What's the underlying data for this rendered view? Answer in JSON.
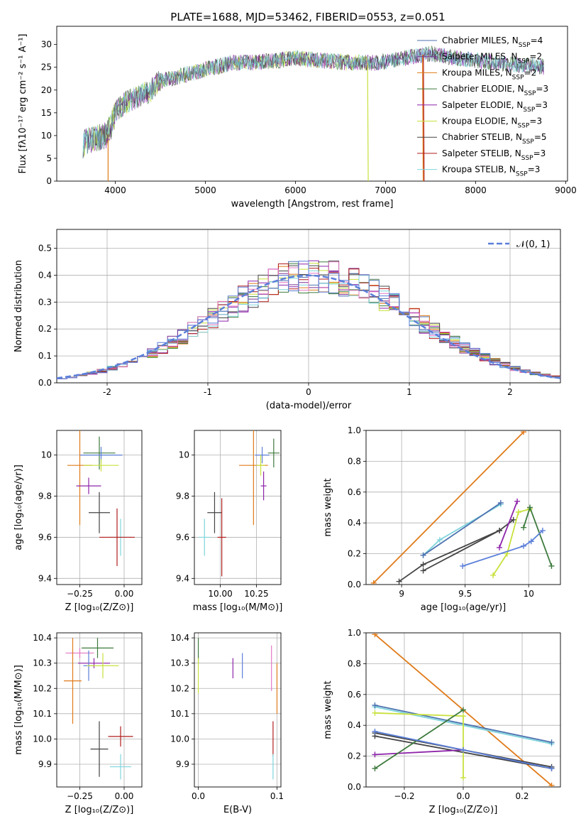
{
  "figure_title": "PLATE=1688, MJD=53462, FIBERID=0553, z=0.051",
  "colors": {
    "chabrier_miles": "#4c72b0",
    "salpeter_miles": "#7b3294",
    "kroupa_miles": "#e07b1a",
    "chabrier_elodie": "#3d7a3d",
    "salpeter_elodie": "#8e24aa",
    "kroupa_elodie": "#c8e03c",
    "chabrier_stelib": "#444444",
    "salpeter_stelib": "#b01c1c",
    "kroupa_stelib": "#7fd4dc",
    "blue": "#5b7fd9",
    "pink": "#e377c2",
    "normal_curve": "#5b7fd9"
  },
  "chart_data": [
    {
      "id": "spectrum",
      "type": "line",
      "xlabel": "wavelength [Angstrom, rest frame]",
      "ylabel": "Flux [fλ10⁻¹⁷ erg cm⁻² s⁻¹ A⁻¹]",
      "xlim": [
        3350,
        9020
      ],
      "ylim": [
        0,
        34
      ],
      "xticks": [
        4000,
        5000,
        6000,
        7000,
        8000,
        9000
      ],
      "yticks": [
        0,
        5,
        10,
        15,
        20,
        25,
        30
      ],
      "grid": false,
      "legend_position": "top-right",
      "legend": [
        {
          "label": "Chabrier MILES, N_SSP=4",
          "color_key": "chabrier_miles"
        },
        {
          "label": "Salpeter MILES, N_SSP=2",
          "color_key": "salpeter_miles"
        },
        {
          "label": "Kroupa MILES, N_SSP=2",
          "color_key": "kroupa_miles"
        },
        {
          "label": "Chabrier ELODIE, N_SSP=3",
          "color_key": "chabrier_elodie"
        },
        {
          "label": "Salpeter ELODIE, N_SSP=3",
          "color_key": "salpeter_elodie"
        },
        {
          "label": "Kroupa ELODIE, N_SSP=3",
          "color_key": "kroupa_elodie"
        },
        {
          "label": "Chabrier STELIB, N_SSP=5",
          "color_key": "chabrier_stelib"
        },
        {
          "label": "Salpeter STELIB, N_SSP=3",
          "color_key": "salpeter_stelib"
        },
        {
          "label": "Kroupa STELIB, N_SSP=3",
          "color_key": "kroupa_stelib"
        }
      ],
      "continuum": [
        [
          3640,
          8
        ],
        [
          3700,
          9
        ],
        [
          3800,
          9.5
        ],
        [
          3900,
          10
        ],
        [
          3950,
          12
        ],
        [
          4000,
          15
        ],
        [
          4100,
          17
        ],
        [
          4200,
          18
        ],
        [
          4300,
          19
        ],
        [
          4400,
          20
        ],
        [
          4500,
          22
        ],
        [
          4700,
          23
        ],
        [
          4900,
          24
        ],
        [
          5100,
          25
        ],
        [
          5300,
          26
        ],
        [
          5500,
          26
        ],
        [
          5800,
          26.5
        ],
        [
          6000,
          27
        ],
        [
          6300,
          26.5
        ],
        [
          6600,
          26
        ],
        [
          6900,
          26
        ],
        [
          7200,
          27
        ],
        [
          7500,
          28
        ],
        [
          7800,
          27
        ],
        [
          8200,
          26
        ],
        [
          8500,
          25.5
        ],
        [
          8760,
          25
        ]
      ],
      "series_ends": [
        {
          "color_key": "kroupa_elodie",
          "x_end": 6800
        },
        {
          "color_key": "salpeter_stelib",
          "x_end": 7420
        },
        {
          "color_key": "kroupa_miles",
          "x_end": 7420
        },
        {
          "color_key": "chabrier_miles",
          "x_end": 8760
        },
        {
          "color_key": "chabrier_stelib",
          "x_end": 8760
        },
        {
          "color_key": "kroupa_stelib",
          "x_end": 8760
        }
      ]
    },
    {
      "id": "residuals",
      "type": "histogram",
      "xlabel": "(data-model)/error",
      "ylabel": "Normed distribution",
      "xlim": [
        -2.5,
        2.5
      ],
      "ylim": [
        0,
        0.57
      ],
      "xticks": [
        -2,
        -1,
        0,
        1,
        2
      ],
      "yticks": [
        0.0,
        0.1,
        0.2,
        0.3,
        0.4,
        0.5
      ],
      "grid": true,
      "legend_position": "top-right",
      "legend_label": "𝒩(0, 1)",
      "bin_width": 0.1,
      "reference_curve": "normal(0,1)"
    },
    {
      "id": "age_vs_Z",
      "type": "errorbar",
      "xlabel": "Z [log₁₀(Z/Z⊙)]",
      "ylabel": "age  [log₁₀(age/yr)]",
      "xlim": [
        -0.38,
        0.1
      ],
      "ylim": [
        9.37,
        10.12
      ],
      "xticks": [
        -0.25,
        0.0
      ],
      "xticklabels": [
        "−0.25",
        "0.00"
      ],
      "yticks": [
        9.4,
        9.6,
        9.8,
        10.0
      ],
      "grid": true,
      "points": [
        {
          "c": "chabrier_elodie",
          "x": -0.14,
          "y": 10.01,
          "xe": 0.09,
          "ye": 0.08
        },
        {
          "c": "blue",
          "x": -0.13,
          "y": 10.0,
          "xe": 0.12,
          "ye": 0.04
        },
        {
          "c": "kroupa_miles",
          "x": -0.25,
          "y": 9.95,
          "xe": 0.07,
          "ye": 0.29
        },
        {
          "c": "kroupa_elodie",
          "x": -0.13,
          "y": 9.95,
          "xe": 0.1,
          "ye": 0.03
        },
        {
          "c": "salpeter_elodie",
          "x": -0.2,
          "y": 9.85,
          "xe": 0.07,
          "ye": 0.04
        },
        {
          "c": "chabrier_stelib",
          "x": -0.14,
          "y": 9.72,
          "xe": 0.06,
          "ye": 0.1
        },
        {
          "c": "kroupa_stelib",
          "x": -0.02,
          "y": 9.6,
          "xe": 0.06,
          "ye": 0.09
        },
        {
          "c": "salpeter_stelib",
          "x": -0.04,
          "y": 9.6,
          "xe": 0.1,
          "ye": 0.14
        }
      ]
    },
    {
      "id": "age_vs_mass",
      "type": "errorbar",
      "xlabel": "mass [log₁₀(M/M⊙)]",
      "ylabel": "",
      "xlim": [
        9.82,
        10.42
      ],
      "ylim": [
        9.37,
        10.12
      ],
      "xticks": [
        10.0,
        10.25
      ],
      "xticklabels": [
        "10.00",
        "10.25"
      ],
      "yticks": [
        9.4,
        9.6,
        9.8,
        10.0
      ],
      "grid": true,
      "points": [
        {
          "c": "chabrier_elodie",
          "x": 10.37,
          "y": 10.01,
          "xe": 0.04,
          "ye": 0.07
        },
        {
          "c": "blue",
          "x": 10.29,
          "y": 10.0,
          "xe": 0.05,
          "ye": 0.04
        },
        {
          "c": "kroupa_miles",
          "x": 10.23,
          "y": 9.95,
          "xe": 0.1,
          "ye": 0.29
        },
        {
          "c": "kroupa_elodie",
          "x": 10.28,
          "y": 9.95,
          "xe": 0.03,
          "ye": 0.05
        },
        {
          "c": "salpeter_elodie",
          "x": 10.3,
          "y": 9.85,
          "xe": 0.02,
          "ye": 0.07
        },
        {
          "c": "chabrier_stelib",
          "x": 9.96,
          "y": 9.72,
          "xe": 0.05,
          "ye": 0.1
        },
        {
          "c": "kroupa_stelib",
          "x": 9.89,
          "y": 9.6,
          "xe": 0.04,
          "ye": 0.09
        },
        {
          "c": "salpeter_stelib",
          "x": 10.01,
          "y": 9.6,
          "xe": 0.03,
          "ye": 0.19
        }
      ]
    },
    {
      "id": "massweight_vs_age",
      "type": "line",
      "xlabel": "age  [log₁₀(age/yr)]",
      "ylabel": "mass weight",
      "xlim": [
        8.72,
        10.25
      ],
      "ylim": [
        0,
        1
      ],
      "xticks": [
        9.0,
        9.5,
        10.0
      ],
      "yticks": [
        0.0,
        0.2,
        0.4,
        0.6,
        0.8,
        1.0
      ],
      "grid": true,
      "series": [
        {
          "c": "kroupa_miles",
          "points": [
            [
              8.78,
              0.01
            ],
            [
              9.96,
              0.99
            ]
          ]
        },
        {
          "c": "kroupa_stelib",
          "points": [
            [
              9.17,
              0.19
            ],
            [
              9.3,
              0.29
            ],
            [
              9.78,
              0.52
            ]
          ]
        },
        {
          "c": "chabrier_miles",
          "points": [
            [
              9.17,
              0.19
            ],
            [
              9.78,
              0.53
            ]
          ]
        },
        {
          "c": "chabrier_stelib",
          "points": [
            [
              8.98,
              0.02
            ],
            [
              9.17,
              0.13
            ],
            [
              9.77,
              0.35
            ],
            [
              9.88,
              0.42
            ]
          ]
        },
        {
          "c": "chabrier_stelib",
          "points": [
            [
              9.17,
              0.09
            ],
            [
              9.77,
              0.35
            ]
          ]
        },
        {
          "c": "salpeter_elodie",
          "points": [
            [
              9.77,
              0.24
            ],
            [
              9.91,
              0.54
            ]
          ]
        },
        {
          "c": "kroupa_elodie",
          "points": [
            [
              9.72,
              0.06
            ],
            [
              9.83,
              0.2
            ],
            [
              9.92,
              0.47
            ],
            [
              10.01,
              0.49
            ]
          ]
        },
        {
          "c": "chabrier_elodie",
          "points": [
            [
              9.96,
              0.37
            ],
            [
              10.01,
              0.5
            ],
            [
              10.18,
              0.12
            ]
          ]
        },
        {
          "c": "blue",
          "points": [
            [
              9.48,
              0.12
            ],
            [
              9.96,
              0.25
            ],
            [
              10.02,
              0.28
            ],
            [
              10.11,
              0.35
            ]
          ]
        }
      ]
    },
    {
      "id": "mass_vs_Z",
      "type": "errorbar",
      "xlabel": "Z [log₁₀(Z/Z⊙)]",
      "ylabel": "mass [log₁₀(M/M⊙)]",
      "xlim": [
        -0.38,
        0.1
      ],
      "ylim": [
        9.81,
        10.42
      ],
      "xticks": [
        -0.25,
        0.0
      ],
      "xticklabels": [
        "−0.25",
        "0.00"
      ],
      "yticks": [
        9.9,
        10.0,
        10.1,
        10.2,
        10.3,
        10.4
      ],
      "grid": true,
      "points": [
        {
          "c": "chabrier_elodie",
          "x": -0.15,
          "y": 10.36,
          "xe": 0.09,
          "ye": 0.04
        },
        {
          "c": "pink",
          "x": -0.25,
          "y": 10.34,
          "xe": 0.08,
          "ye": 0.02
        },
        {
          "c": "salpeter_elodie",
          "x": -0.17,
          "y": 10.3,
          "xe": 0.09,
          "ye": 0.02
        },
        {
          "c": "blue",
          "x": -0.2,
          "y": 10.29,
          "xe": 0.03,
          "ye": 0.06
        },
        {
          "c": "kroupa_elodie",
          "x": -0.12,
          "y": 10.29,
          "xe": 0.09,
          "ye": 0.05
        },
        {
          "c": "kroupa_miles",
          "x": -0.29,
          "y": 10.23,
          "xe": 0.05,
          "ye": 0.17
        },
        {
          "c": "salpeter_stelib",
          "x": -0.02,
          "y": 10.01,
          "xe": 0.07,
          "ye": 0.04
        },
        {
          "c": "chabrier_stelib",
          "x": -0.14,
          "y": 9.96,
          "xe": 0.05,
          "ye": 0.11
        },
        {
          "c": "kroupa_stelib",
          "x": -0.02,
          "y": 9.89,
          "xe": 0.06,
          "ye": 0.05
        }
      ]
    },
    {
      "id": "mass_vs_EBV",
      "type": "errorbar",
      "xlabel": "E(B-V)",
      "ylabel": "",
      "xlim": [
        -0.005,
        0.105
      ],
      "ylim": [
        9.81,
        10.42
      ],
      "xticks": [
        0.0,
        0.1
      ],
      "xticklabels": [
        "0.0",
        "0.1"
      ],
      "yticks": [
        9.9,
        10.0,
        10.1,
        10.2,
        10.3,
        10.4
      ],
      "grid": true,
      "points": [
        {
          "c": "chabrier_elodie",
          "x": 0.0,
          "y": 10.35,
          "xe": 0.0,
          "ye": 0.05
        },
        {
          "c": "kroupa_elodie",
          "x": 0.0,
          "y": 10.25,
          "xe": 0.0,
          "ye": 0.07
        },
        {
          "c": "salpeter_elodie",
          "x": 0.044,
          "y": 10.28,
          "xe": 0.0,
          "ye": 0.04
        },
        {
          "c": "blue",
          "x": 0.056,
          "y": 10.29,
          "xe": 0.0,
          "ye": 0.05
        },
        {
          "c": "pink",
          "x": 0.093,
          "y": 10.28,
          "xe": 0.0,
          "ye": 0.09
        },
        {
          "c": "kroupa_miles",
          "x": 0.1,
          "y": 10.2,
          "xe": 0.0,
          "ye": 0.1
        },
        {
          "c": "salpeter_stelib",
          "x": 0.095,
          "y": 10.0,
          "xe": 0.0,
          "ye": 0.07
        },
        {
          "c": "kroupa_stelib",
          "x": 0.095,
          "y": 9.89,
          "xe": 0.0,
          "ye": 0.05
        }
      ]
    },
    {
      "id": "massweight_vs_Z",
      "type": "line",
      "xlabel": "Z [log₁₀(Z/Z⊙)]",
      "ylabel": "mass weight",
      "xlim": [
        -0.33,
        0.33
      ],
      "ylim": [
        0,
        1
      ],
      "xticks": [
        -0.2,
        0.0,
        0.2
      ],
      "xticklabels": [
        "−0.2",
        "0.0",
        "0.2"
      ],
      "yticks": [
        0.0,
        0.2,
        0.4,
        0.6,
        0.8,
        1.0
      ],
      "grid": true,
      "series": [
        {
          "c": "kroupa_miles",
          "points": [
            [
              -0.3,
              0.99
            ],
            [
              0.3,
              0.01
            ]
          ]
        },
        {
          "c": "kroupa_stelib",
          "points": [
            [
              -0.3,
              0.52
            ],
            [
              0.3,
              0.28
            ]
          ]
        },
        {
          "c": "chabrier_miles",
          "points": [
            [
              -0.3,
              0.53
            ],
            [
              0.3,
              0.29
            ]
          ]
        },
        {
          "c": "chabrier_stelib",
          "points": [
            [
              -0.3,
              0.35
            ],
            [
              0.3,
              0.13
            ]
          ]
        },
        {
          "c": "chabrier_stelib",
          "points": [
            [
              -0.3,
              0.33
            ],
            [
              0.3,
              0.12
            ]
          ]
        },
        {
          "c": "salpeter_elodie",
          "points": [
            [
              -0.3,
              0.21
            ],
            [
              0.0,
              0.24
            ]
          ]
        },
        {
          "c": "kroupa_elodie",
          "points": [
            [
              -0.3,
              0.48
            ],
            [
              0.0,
              0.46
            ],
            [
              0.0,
              0.06
            ]
          ]
        },
        {
          "c": "chabrier_elodie",
          "points": [
            [
              -0.3,
              0.12
            ],
            [
              0.0,
              0.5
            ]
          ]
        },
        {
          "c": "blue",
          "points": [
            [
              -0.3,
              0.36
            ],
            [
              0.0,
              0.24
            ],
            [
              0.3,
              0.12
            ]
          ]
        }
      ]
    }
  ]
}
